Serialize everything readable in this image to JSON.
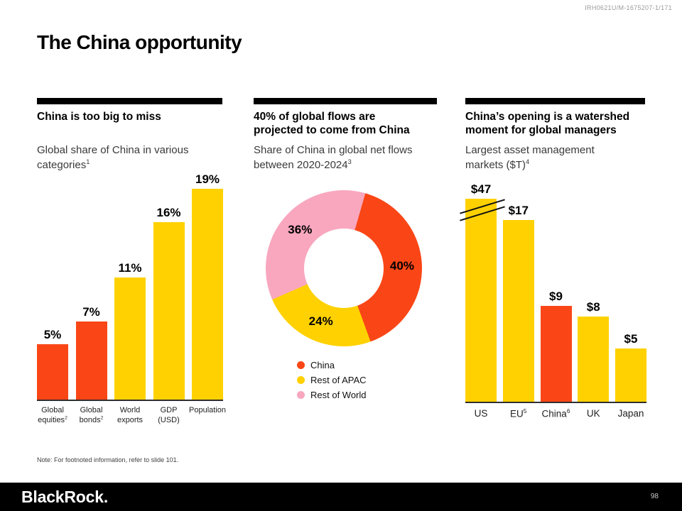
{
  "meta": {
    "doc_id": "IRH0621U/M-1675207-1/171",
    "page_number": "98",
    "note": "Note: For footnoted information, refer to slide 101.",
    "logo_text": "BlackRock."
  },
  "title": "The China opportunity",
  "colors": {
    "red": "#FA4616",
    "yellow": "#FFD100",
    "pink": "#F8A7BE",
    "header_bar": "#000000"
  },
  "panels": {
    "left": {
      "heading": "China is too big to miss",
      "subtitle": "Global share of China in various categories",
      "subtitle_sup": "1"
    },
    "middle": {
      "heading": "40% of global flows are projected to come from China",
      "subtitle": "Share of China in global net flows between 2020-2024",
      "subtitle_sup": "3"
    },
    "right": {
      "heading": "China’s opening is a watershed moment for global managers",
      "subtitle": "Largest asset management markets ($T)",
      "subtitle_sup": "4"
    }
  },
  "chart_data": [
    {
      "id": "global-share-bars",
      "type": "bar",
      "title": "Global share of China in various categories",
      "categories": [
        {
          "lines": [
            "Global",
            "equities"
          ],
          "sup": "2"
        },
        {
          "lines": [
            "Global",
            "bonds"
          ],
          "sup": "2"
        },
        {
          "lines": [
            "World",
            "exports"
          ]
        },
        {
          "lines": [
            "GDP",
            "(USD)"
          ]
        },
        {
          "lines": [
            "Population"
          ]
        }
      ],
      "values": [
        5,
        7,
        11,
        16,
        19
      ],
      "labels": [
        "5%",
        "7%",
        "11%",
        "16%",
        "19%"
      ],
      "bar_colors": [
        "red",
        "red",
        "yellow",
        "yellow",
        "yellow"
      ],
      "ylim": [
        0,
        20
      ],
      "unit": "%",
      "grid": false,
      "legend": "none"
    },
    {
      "id": "net-flows-donut",
      "type": "pie",
      "donut": true,
      "title": "Share of China in global net flows between 2020-2024",
      "start_angle_deg": 16,
      "slices": [
        {
          "label": "China",
          "value": 40,
          "display": "40%",
          "color": "red"
        },
        {
          "label": "Rest of APAC",
          "value": 24,
          "display": "24%",
          "color": "yellow"
        },
        {
          "label": "Rest of World",
          "value": 36,
          "display": "36%",
          "color": "pink"
        }
      ],
      "legend_position": "bottom"
    },
    {
      "id": "asset-markets-bars",
      "type": "bar",
      "title": "Largest asset management markets ($T)",
      "categories": [
        {
          "lines": [
            "US"
          ]
        },
        {
          "lines": [
            "EU"
          ],
          "sup": "5"
        },
        {
          "lines": [
            "China"
          ],
          "sup": "6"
        },
        {
          "lines": [
            "UK"
          ]
        },
        {
          "lines": [
            "Japan"
          ]
        }
      ],
      "values": [
        47,
        17,
        9,
        8,
        5
      ],
      "labels": [
        "$47",
        "$17",
        "$9",
        "$8",
        "$5"
      ],
      "bar_colors": [
        "yellow",
        "yellow",
        "red",
        "yellow",
        "yellow"
      ],
      "ylim": [
        0,
        21
      ],
      "unit": "$T",
      "axis_break": {
        "category": "US",
        "truncate_at_value": 19
      },
      "grid": false,
      "legend": "none"
    }
  ]
}
